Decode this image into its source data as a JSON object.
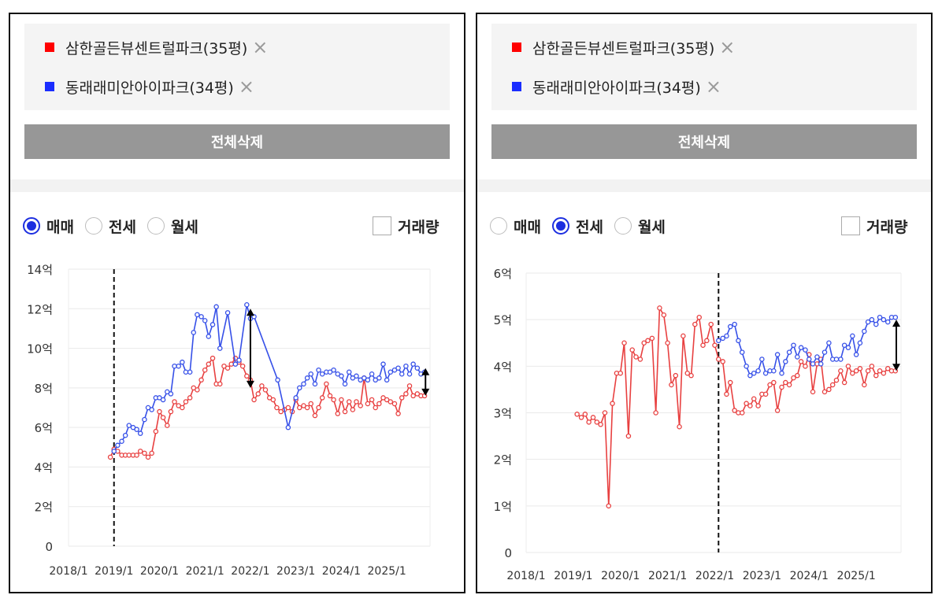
{
  "panels": [
    {
      "legend": [
        {
          "name": "삼한골든뷰센트럴파크(35평)",
          "color": "#ff0000"
        },
        {
          "name": "동래래미안아이파크(34평)",
          "color": "#1a2dff"
        }
      ],
      "close_icon": "×",
      "delete_label": "전체삭제",
      "radios": [
        {
          "label": "매매",
          "selected": true
        },
        {
          "label": "전세",
          "selected": false
        },
        {
          "label": "월세",
          "selected": false
        }
      ],
      "volume_label": "거래량",
      "volume_checked": false
    },
    {
      "legend": [
        {
          "name": "삼한골든뷰센트럴파크(35평)",
          "color": "#ff0000"
        },
        {
          "name": "동래래미안아이파크(34평)",
          "color": "#1a2dff"
        }
      ],
      "close_icon": "×",
      "delete_label": "전체삭제",
      "radios": [
        {
          "label": "매매",
          "selected": false
        },
        {
          "label": "전세",
          "selected": true
        },
        {
          "label": "월세",
          "selected": false
        }
      ],
      "volume_label": "거래량",
      "volume_checked": false
    }
  ],
  "chart_data": [
    {
      "type": "line",
      "ylim": [
        0,
        14
      ],
      "xlim": [
        2018.0,
        2025.95
      ],
      "y_ticks": [
        {
          "v": 0,
          "label": "0"
        },
        {
          "v": 2,
          "label": "2억"
        },
        {
          "v": 4,
          "label": "4억"
        },
        {
          "v": 6,
          "label": "6억"
        },
        {
          "v": 8,
          "label": "8억"
        },
        {
          "v": 10,
          "label": "10억"
        },
        {
          "v": 12,
          "label": "12억"
        },
        {
          "v": 14,
          "label": "14억"
        }
      ],
      "x_ticks": [
        {
          "v": 2018,
          "label": "2018/1"
        },
        {
          "v": 2019,
          "label": "2019/1"
        },
        {
          "v": 2020,
          "label": "2020/1"
        },
        {
          "v": 2021,
          "label": "2021/1"
        },
        {
          "v": 2022,
          "label": "2022/1"
        },
        {
          "v": 2023,
          "label": "2023/1"
        },
        {
          "v": 2024,
          "label": "2024/1"
        },
        {
          "v": 2025,
          "label": "2025/1"
        }
      ],
      "grid": true,
      "reference_line_x": 2019.0,
      "gap_arrows": [
        {
          "x": 2022.0,
          "y1": 12.0,
          "y2": 8.0
        },
        {
          "x": 2025.85,
          "y1": 9.0,
          "y2": 7.6
        }
      ],
      "series": [
        {
          "color": "#e84040",
          "x": [
            2018.92,
            2019.0,
            2019.08,
            2019.17,
            2019.25,
            2019.33,
            2019.42,
            2019.5,
            2019.58,
            2019.67,
            2019.75,
            2019.83,
            2019.92,
            2020.0,
            2020.08,
            2020.17,
            2020.25,
            2020.33,
            2020.42,
            2020.5,
            2020.58,
            2020.67,
            2020.75,
            2020.83,
            2020.92,
            2021.0,
            2021.08,
            2021.17,
            2021.25,
            2021.33,
            2021.42,
            2021.5,
            2021.58,
            2021.67,
            2021.75,
            2021.83,
            2021.92,
            2022.0,
            2022.08,
            2022.17,
            2022.25,
            2022.33,
            2022.42,
            2022.5,
            2022.58,
            2022.67,
            2022.75,
            2022.83,
            2022.92,
            2023.0,
            2023.08,
            2023.17,
            2023.25,
            2023.33,
            2023.42,
            2023.5,
            2023.58,
            2023.67,
            2023.75,
            2023.83,
            2023.92,
            2024.0,
            2024.08,
            2024.17,
            2024.25,
            2024.33,
            2024.42,
            2024.5,
            2024.58,
            2024.67,
            2024.75,
            2024.83,
            2024.92,
            2025.0,
            2025.08,
            2025.17,
            2025.25,
            2025.33,
            2025.42,
            2025.5,
            2025.58,
            2025.67,
            2025.75,
            2025.83
          ],
          "y": [
            4.5,
            4.9,
            4.8,
            4.6,
            4.6,
            4.6,
            4.6,
            4.6,
            4.8,
            4.7,
            4.5,
            4.7,
            5.8,
            6.8,
            6.5,
            6.1,
            6.8,
            7.3,
            7.1,
            7.0,
            7.3,
            7.5,
            8.0,
            7.9,
            8.4,
            8.9,
            9.2,
            9.5,
            8.2,
            8.2,
            9.1,
            9.0,
            9.2,
            9.5,
            9.3,
            9.1,
            8.6,
            8.4,
            7.4,
            7.7,
            8.1,
            7.9,
            7.5,
            7.4,
            7.0,
            6.8,
            6.9,
            7.0,
            6.8,
            7.4,
            7.0,
            7.1,
            7.0,
            7.2,
            6.6,
            7.0,
            7.5,
            8.2,
            7.6,
            7.4,
            6.7,
            7.4,
            6.8,
            7.3,
            6.9,
            7.3,
            7.1,
            8.5,
            7.2,
            7.4,
            7.0,
            7.2,
            7.5,
            7.4,
            7.3,
            7.2,
            6.7,
            7.5,
            7.7,
            8.1,
            7.6,
            7.7,
            7.6,
            7.6
          ]
        },
        {
          "color": "#3650e8",
          "x": [
            2019.0,
            2019.08,
            2019.17,
            2019.25,
            2019.33,
            2019.42,
            2019.5,
            2019.58,
            2019.67,
            2019.75,
            2019.83,
            2019.92,
            2020.0,
            2020.08,
            2020.17,
            2020.25,
            2020.33,
            2020.42,
            2020.5,
            2020.58,
            2020.67,
            2020.75,
            2020.83,
            2020.92,
            2021.0,
            2021.08,
            2021.17,
            2021.25,
            2021.33,
            2021.5,
            2021.67,
            2021.75,
            2021.92,
            2022.0,
            2022.08,
            2022.6,
            2022.83,
            2023.0,
            2023.08,
            2023.17,
            2023.25,
            2023.33,
            2023.42,
            2023.5,
            2023.58,
            2023.67,
            2023.75,
            2023.83,
            2023.92,
            2024.0,
            2024.08,
            2024.17,
            2024.25,
            2024.33,
            2024.42,
            2024.5,
            2024.58,
            2024.67,
            2024.75,
            2024.83,
            2024.92,
            2025.0,
            2025.08,
            2025.17,
            2025.25,
            2025.33,
            2025.42,
            2025.5,
            2025.58,
            2025.67,
            2025.75,
            2025.83
          ],
          "y": [
            4.8,
            5.1,
            5.3,
            5.6,
            6.1,
            6.0,
            5.9,
            5.7,
            6.4,
            7.0,
            6.9,
            7.5,
            7.5,
            7.4,
            7.8,
            7.7,
            9.1,
            9.1,
            9.3,
            8.8,
            8.8,
            10.8,
            11.7,
            11.6,
            11.4,
            10.6,
            11.2,
            12.1,
            10.0,
            11.8,
            9.2,
            9.4,
            12.2,
            11.5,
            11.6,
            8.4,
            6.0,
            7.5,
            8.0,
            8.2,
            8.5,
            8.7,
            8.2,
            8.9,
            8.7,
            8.8,
            8.8,
            8.9,
            8.7,
            8.6,
            8.2,
            8.8,
            8.5,
            8.6,
            8.4,
            8.5,
            8.4,
            8.7,
            8.4,
            8.5,
            9.2,
            8.4,
            8.8,
            8.9,
            9.0,
            8.7,
            9.1,
            8.7,
            9.2,
            9.0,
            8.7,
            8.8
          ]
        }
      ]
    },
    {
      "type": "line",
      "ylim": [
        0,
        6
      ],
      "xlim": [
        2018.0,
        2025.95
      ],
      "y_ticks": [
        {
          "v": 0,
          "label": "0"
        },
        {
          "v": 1,
          "label": "1억"
        },
        {
          "v": 2,
          "label": "2억"
        },
        {
          "v": 3,
          "label": "3억"
        },
        {
          "v": 4,
          "label": "4억"
        },
        {
          "v": 5,
          "label": "5억"
        },
        {
          "v": 6,
          "label": "6억"
        }
      ],
      "x_ticks": [
        {
          "v": 2018,
          "label": "2018/1"
        },
        {
          "v": 2019,
          "label": "2019/1"
        },
        {
          "v": 2020,
          "label": "2020/1"
        },
        {
          "v": 2021,
          "label": "2021/1"
        },
        {
          "v": 2022,
          "label": "2022/1"
        },
        {
          "v": 2023,
          "label": "2023/1"
        },
        {
          "v": 2024,
          "label": "2024/1"
        },
        {
          "v": 2025,
          "label": "2025/1"
        }
      ],
      "grid": true,
      "reference_line_x": 2022.08,
      "gap_arrows": [
        {
          "x": 2025.85,
          "y1": 5.0,
          "y2": 3.9
        }
      ],
      "series": [
        {
          "color": "#e84040",
          "x": [
            2019.08,
            2019.17,
            2019.25,
            2019.33,
            2019.42,
            2019.5,
            2019.58,
            2019.67,
            2019.75,
            2019.83,
            2019.92,
            2020.0,
            2020.08,
            2020.17,
            2020.25,
            2020.33,
            2020.42,
            2020.5,
            2020.58,
            2020.67,
            2020.75,
            2020.83,
            2020.92,
            2021.0,
            2021.08,
            2021.17,
            2021.25,
            2021.33,
            2021.42,
            2021.5,
            2021.58,
            2021.67,
            2021.75,
            2021.83,
            2021.92,
            2022.0,
            2022.08,
            2022.17,
            2022.25,
            2022.33,
            2022.42,
            2022.5,
            2022.58,
            2022.67,
            2022.75,
            2022.83,
            2022.92,
            2023.0,
            2023.08,
            2023.17,
            2023.25,
            2023.33,
            2023.42,
            2023.5,
            2023.58,
            2023.67,
            2023.75,
            2023.83,
            2023.92,
            2024.0,
            2024.08,
            2024.17,
            2024.25,
            2024.33,
            2024.42,
            2024.5,
            2024.58,
            2024.67,
            2024.75,
            2024.83,
            2024.92,
            2025.0,
            2025.08,
            2025.17,
            2025.25,
            2025.33,
            2025.42,
            2025.5,
            2025.58,
            2025.67,
            2025.75,
            2025.83
          ],
          "y": [
            2.97,
            2.9,
            2.97,
            2.8,
            2.9,
            2.8,
            2.75,
            3.0,
            1.0,
            3.2,
            3.85,
            3.85,
            4.5,
            2.5,
            4.35,
            4.2,
            4.15,
            4.5,
            4.55,
            4.6,
            3.0,
            5.25,
            5.1,
            4.5,
            3.6,
            3.8,
            2.7,
            4.65,
            3.85,
            3.8,
            4.9,
            5.05,
            4.45,
            4.55,
            4.9,
            4.45,
            4.15,
            4.1,
            3.4,
            3.65,
            3.05,
            3.0,
            3.0,
            3.2,
            3.15,
            3.3,
            3.15,
            3.4,
            3.4,
            3.6,
            3.65,
            3.05,
            3.55,
            3.65,
            3.6,
            3.75,
            3.8,
            4.1,
            4.0,
            4.25,
            3.45,
            4.05,
            4.15,
            3.45,
            3.5,
            3.6,
            3.7,
            3.9,
            3.65,
            4.0,
            3.85,
            3.9,
            3.95,
            3.6,
            3.9,
            4.0,
            3.8,
            3.9,
            3.85,
            3.95,
            3.9,
            3.9
          ]
        },
        {
          "color": "#3650e8",
          "x": [
            2022.08,
            2022.17,
            2022.25,
            2022.33,
            2022.42,
            2022.5,
            2022.58,
            2022.67,
            2022.75,
            2022.83,
            2022.92,
            2023.0,
            2023.08,
            2023.17,
            2023.25,
            2023.33,
            2023.42,
            2023.5,
            2023.58,
            2023.67,
            2023.75,
            2023.83,
            2023.92,
            2024.0,
            2024.08,
            2024.17,
            2024.25,
            2024.33,
            2024.42,
            2024.5,
            2024.58,
            2024.67,
            2024.75,
            2024.83,
            2024.92,
            2025.0,
            2025.08,
            2025.17,
            2025.25,
            2025.33,
            2025.42,
            2025.5,
            2025.58,
            2025.67,
            2025.75,
            2025.83
          ],
          "y": [
            4.55,
            4.6,
            4.65,
            4.85,
            4.9,
            4.55,
            4.3,
            4.0,
            3.8,
            3.85,
            3.9,
            4.15,
            3.85,
            3.9,
            3.9,
            4.25,
            3.85,
            4.1,
            4.3,
            4.45,
            4.2,
            4.4,
            4.35,
            4.15,
            4.05,
            4.2,
            4.05,
            4.3,
            4.5,
            4.15,
            4.15,
            4.15,
            4.45,
            4.4,
            4.65,
            4.25,
            4.5,
            4.75,
            4.95,
            5.0,
            4.9,
            5.05,
            5.0,
            4.95,
            5.05,
            5.05
          ]
        }
      ]
    }
  ]
}
